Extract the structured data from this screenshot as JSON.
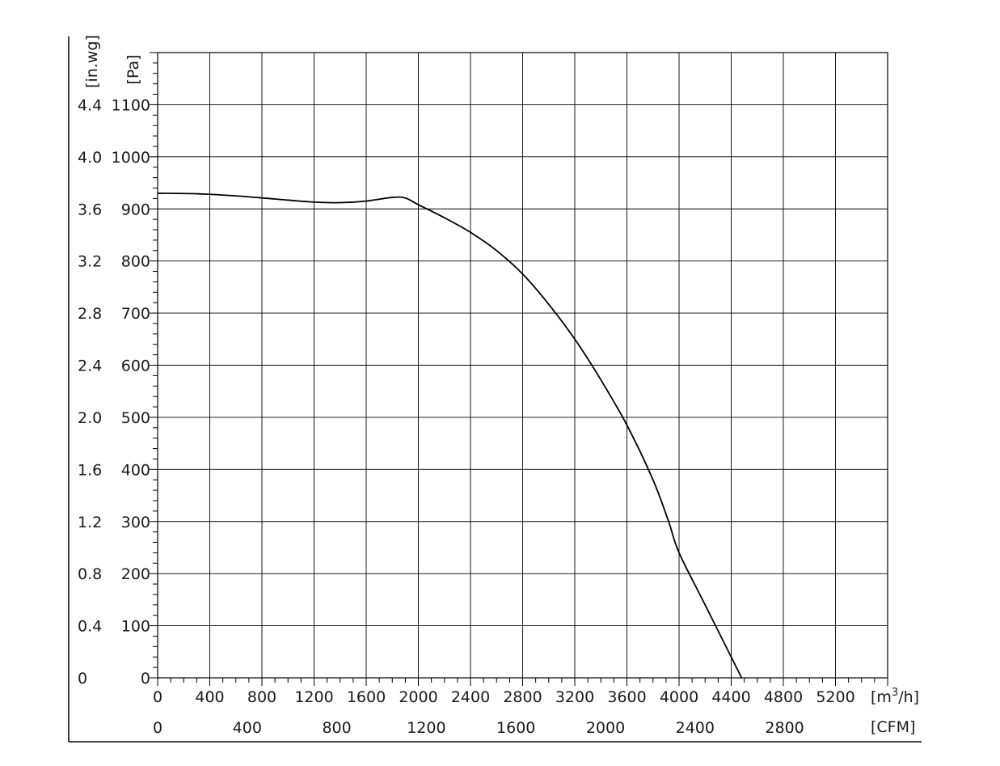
{
  "chart_data": {
    "type": "line",
    "title": "",
    "grid": true,
    "axes": {
      "x_primary": {
        "unit_label": "[m³/h]",
        "unit_base": "[m",
        "unit_sup": "3",
        "unit_tail": "/h]",
        "range": [
          0,
          5600
        ],
        "ticks": [
          "0",
          "400",
          "800",
          "1200",
          "1600",
          "2000",
          "2400",
          "2800",
          "3200",
          "3600",
          "4000",
          "4400",
          "4800",
          "5200"
        ],
        "tick_values": [
          0,
          400,
          800,
          1200,
          1600,
          2000,
          2400,
          2800,
          3200,
          3600,
          4000,
          4400,
          4800,
          5200
        ]
      },
      "x_secondary": {
        "unit_label": "[CFM]",
        "ticks": [
          "0",
          "400",
          "800",
          "1200",
          "1600",
          "2000",
          "2400",
          "2800"
        ],
        "tick_values": [
          0,
          400,
          800,
          1200,
          1600,
          2000,
          2400,
          2800
        ]
      },
      "y_primary": {
        "unit_label": "[Pa]",
        "range": [
          0,
          1200
        ],
        "ticks": [
          "0",
          "100",
          "200",
          "300",
          "400",
          "500",
          "600",
          "700",
          "800",
          "900",
          "1000",
          "1100"
        ],
        "tick_values": [
          0,
          100,
          200,
          300,
          400,
          500,
          600,
          700,
          800,
          900,
          1000,
          1100
        ]
      },
      "y_secondary": {
        "unit_label": "[in.wg]",
        "ticks": [
          "0",
          "0.4",
          "0.8",
          "1.2",
          "1.6",
          "2.0",
          "2.4",
          "2.8",
          "3.2",
          "3.6",
          "4.0",
          "4.4"
        ]
      }
    },
    "series": [
      {
        "color": "#000000",
        "points": [
          [
            0,
            930
          ],
          [
            300,
            929
          ],
          [
            600,
            925
          ],
          [
            900,
            919
          ],
          [
            1200,
            913
          ],
          [
            1400,
            912
          ],
          [
            1600,
            915
          ],
          [
            1800,
            922
          ],
          [
            1900,
            921
          ],
          [
            2000,
            908
          ],
          [
            2200,
            883
          ],
          [
            2400,
            855
          ],
          [
            2600,
            820
          ],
          [
            2800,
            775
          ],
          [
            3000,
            717
          ],
          [
            3200,
            650
          ],
          [
            3400,
            572
          ],
          [
            3600,
            485
          ],
          [
            3800,
            380
          ],
          [
            3920,
            300
          ],
          [
            4000,
            240
          ],
          [
            4200,
            140
          ],
          [
            4400,
            40
          ],
          [
            4480,
            0
          ]
        ]
      }
    ]
  }
}
